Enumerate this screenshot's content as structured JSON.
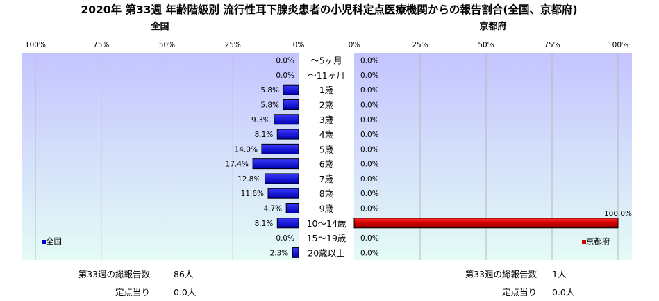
{
  "title": "2020年 第33週 年齢階級別 流行性耳下腺炎患者の小児科定点医療機関からの報告割合(全国、京都府)",
  "chart_data": [
    {
      "type": "bar",
      "orientation": "horizontal",
      "direction": "right-to-left",
      "panel_title": "全国",
      "categories": [
        "～5ヶ月",
        "～11ヶ月",
        "1歳",
        "2歳",
        "3歳",
        "4歳",
        "5歳",
        "6歳",
        "7歳",
        "8歳",
        "9歳",
        "10～14歳",
        "15～19歳",
        "20歳以上"
      ],
      "series": [
        {
          "name": "全国",
          "values": [
            0.0,
            0.0,
            5.8,
            5.8,
            9.3,
            8.1,
            14.0,
            17.4,
            12.8,
            11.6,
            4.7,
            8.1,
            0.0,
            2.3
          ],
          "color": "#0000cc"
        }
      ],
      "value_labels": [
        "0.0%",
        "0.0%",
        "5.8%",
        "5.8%",
        "9.3%",
        "8.1%",
        "14.0%",
        "17.4%",
        "12.8%",
        "11.6%",
        "4.7%",
        "8.1%",
        "0.0%",
        "2.3%"
      ],
      "xlim": [
        0,
        100
      ],
      "ticks": [
        "100%",
        "75%",
        "50%",
        "25%",
        "0%"
      ],
      "grid": true,
      "legend": "bottom-left",
      "footer": {
        "total_label": "第33週の総報告数",
        "total_value": "86人",
        "per_label": "定点当り",
        "per_value": "0.0人"
      }
    },
    {
      "type": "bar",
      "orientation": "horizontal",
      "direction": "left-to-right",
      "panel_title": "京都府",
      "categories": [
        "～5ヶ月",
        "～11ヶ月",
        "1歳",
        "2歳",
        "3歳",
        "4歳",
        "5歳",
        "6歳",
        "7歳",
        "8歳",
        "9歳",
        "10～14歳",
        "15～19歳",
        "20歳以上"
      ],
      "series": [
        {
          "name": "京都府",
          "values": [
            0,
            0,
            0,
            0,
            0,
            0,
            0,
            0,
            0,
            0,
            0,
            100.0,
            0,
            0
          ],
          "color": "#cc0000"
        }
      ],
      "value_labels": [
        "0.0%",
        "0.0%",
        "0.0%",
        "0.0%",
        "0.0%",
        "0.0%",
        "0.0%",
        "0.0%",
        "0.0%",
        "0.0%",
        "0.0%",
        "100.0%",
        "0.0%",
        "0.0%"
      ],
      "xlim": [
        0,
        100
      ],
      "ticks": [
        "0%",
        "25%",
        "50%",
        "75%",
        "100%"
      ],
      "grid": true,
      "legend": "bottom-right",
      "footer": {
        "total_label": "第33週の総報告数",
        "total_value": "1人",
        "per_label": "定点当り",
        "per_value": "0.0人"
      }
    }
  ]
}
